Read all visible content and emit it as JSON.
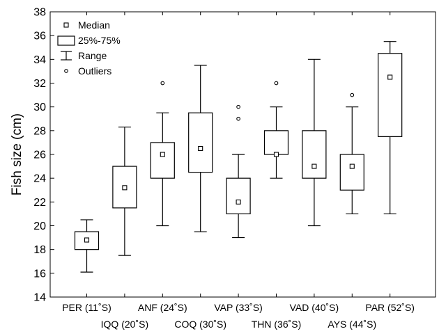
{
  "chart_data": {
    "type": "box",
    "xlabel": "",
    "ylabel": "Fish size (cm)",
    "ylim": [
      14,
      38
    ],
    "yticks": [
      14,
      16,
      18,
      20,
      22,
      24,
      26,
      28,
      30,
      32,
      34,
      36,
      38
    ],
    "grid": false,
    "legend": {
      "placement": "top-left",
      "items": [
        {
          "symbol": "median",
          "label": "Median"
        },
        {
          "symbol": "box",
          "label": "25%-75%"
        },
        {
          "symbol": "range",
          "label": "Range"
        },
        {
          "symbol": "outlier",
          "label": "Outliers"
        }
      ]
    },
    "categories": [
      "PER (11˚S)",
      "IQQ (20˚S)",
      "ANF (24˚S)",
      "COQ (30˚S)",
      "VAP (33˚S)",
      "THN (36˚S)",
      "VAD (40˚S)",
      "AYS (44˚S)",
      "PAR (52˚S)"
    ],
    "boxes": [
      {
        "min": 16.1,
        "q1": 18.0,
        "median": 18.8,
        "q3": 19.5,
        "max": 20.5,
        "outliers": []
      },
      {
        "min": 17.5,
        "q1": 21.5,
        "median": 23.2,
        "q3": 25.0,
        "max": 28.3,
        "outliers": []
      },
      {
        "min": 20.0,
        "q1": 24.0,
        "median": 26.0,
        "q3": 27.0,
        "max": 29.5,
        "outliers": [
          32.0
        ]
      },
      {
        "min": 19.5,
        "q1": 24.5,
        "median": 26.5,
        "q3": 29.5,
        "max": 33.5,
        "outliers": []
      },
      {
        "min": 19.0,
        "q1": 21.0,
        "median": 22.0,
        "q3": 24.0,
        "max": 26.0,
        "outliers": [
          29.0,
          30.0
        ]
      },
      {
        "min": 24.0,
        "q1": 26.0,
        "median": 26.0,
        "q3": 28.0,
        "max": 30.0,
        "outliers": [
          32.0
        ]
      },
      {
        "min": 20.0,
        "q1": 24.0,
        "median": 25.0,
        "q3": 28.0,
        "max": 34.0,
        "outliers": []
      },
      {
        "min": 21.0,
        "q1": 23.0,
        "median": 25.0,
        "q3": 26.0,
        "max": 30.0,
        "outliers": [
          31.0
        ]
      },
      {
        "min": 21.0,
        "q1": 27.5,
        "median": 32.5,
        "q3": 34.5,
        "max": 35.5,
        "outliers": []
      }
    ]
  }
}
